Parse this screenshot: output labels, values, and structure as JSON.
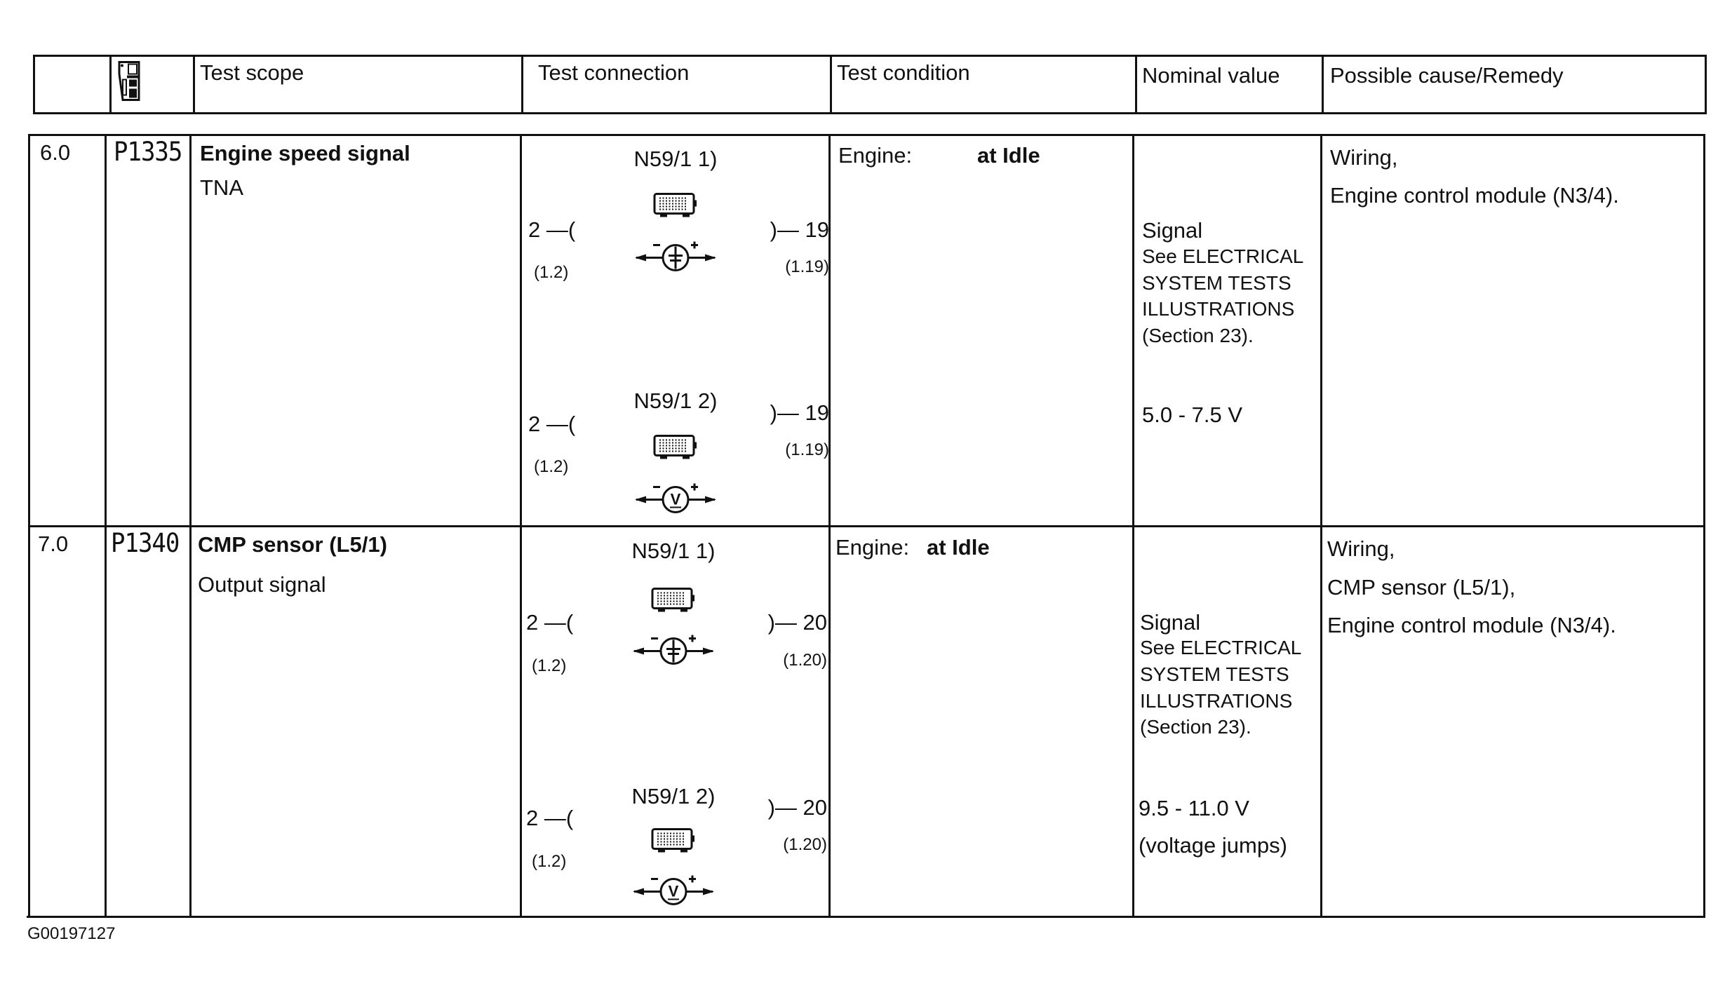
{
  "header": {
    "col_number": "",
    "col_icon": "diagnostic-tester-icon",
    "test_scope": "Test scope",
    "test_connection": "Test connection",
    "test_condition": "Test condition",
    "nominal_value": "Nominal value",
    "remedy": "Possible cause/Remedy"
  },
  "rows": [
    {
      "number": "6.0",
      "code": "P1335",
      "scope_title": "Engine speed signal",
      "scope_sub": "TNA",
      "conn": [
        {
          "label": "N59/1 1)",
          "left_pin": "2 —(",
          "left_ref": "(1.2)",
          "right_pin": ")— 19",
          "right_ref": "(1.19)",
          "meter": "oscilloscope-meter-icon"
        },
        {
          "label": "N59/1 2)",
          "left_pin": "2 —(",
          "left_ref": "(1.2)",
          "right_pin": ")— 19",
          "right_ref": "(1.19)",
          "meter": "voltmeter-icon"
        }
      ],
      "cond_label": "Engine:",
      "cond_value": "at Idle",
      "nominal": {
        "signal": "Signal",
        "see1": "See ELECTRICAL",
        "see2": "SYSTEM TESTS",
        "see3": "ILLUSTRATIONS",
        "see4": "(Section 23).",
        "value": "5.0 - 7.5 V",
        "note": ""
      },
      "remedy": [
        "Wiring,",
        "Engine control module (N3/4)."
      ]
    },
    {
      "number": "7.0",
      "code": "P1340",
      "scope_title": "CMP sensor (L5/1)",
      "scope_sub": "Output signal",
      "conn": [
        {
          "label": "N59/1 1)",
          "left_pin": "2 —(",
          "left_ref": "(1.2)",
          "right_pin": ")— 20",
          "right_ref": "(1.20)",
          "meter": "oscilloscope-meter-icon"
        },
        {
          "label": "N59/1 2)",
          "left_pin": "2 —(",
          "left_ref": "(1.2)",
          "right_pin": ")— 20",
          "right_ref": "(1.20)",
          "meter": "voltmeter-icon"
        }
      ],
      "cond_label": "Engine:",
      "cond_value": "at Idle",
      "nominal": {
        "signal": "Signal",
        "see1": "See ELECTRICAL",
        "see2": "SYSTEM TESTS",
        "see3": "ILLUSTRATIONS",
        "see4": "(Section 23).",
        "value": "9.5 - 11.0 V",
        "note": "(voltage jumps)"
      },
      "remedy": [
        "Wiring,",
        "CMP sensor (L5/1),",
        "Engine control module (N3/4)."
      ]
    }
  ],
  "footer": {
    "figure_id": "G00197127"
  }
}
